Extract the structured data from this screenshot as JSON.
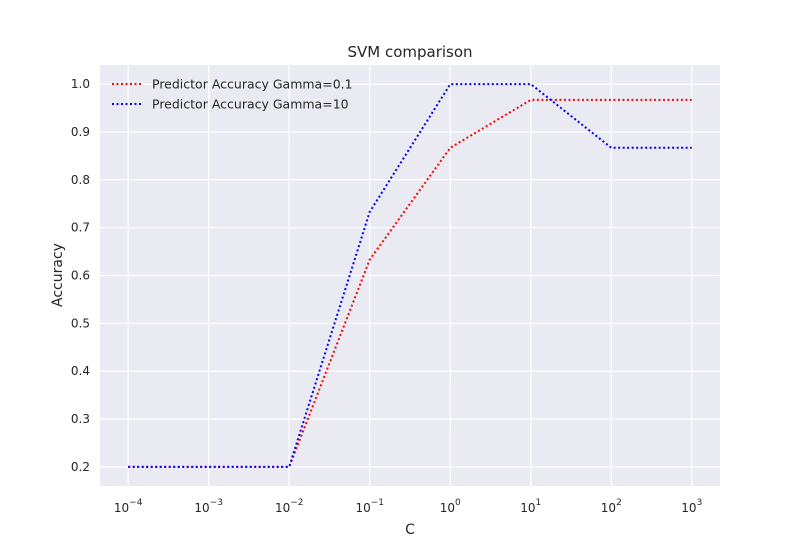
{
  "chart_data": {
    "type": "line",
    "title": "SVM comparison",
    "xlabel": "C",
    "ylabel": "Accuracy",
    "xscale": "log",
    "x": [
      0.0001,
      0.001,
      0.01,
      0.1,
      1,
      10,
      100,
      1000
    ],
    "x_tick_labels": [
      {
        "base": "10",
        "exp": "−4"
      },
      {
        "base": "10",
        "exp": "−3"
      },
      {
        "base": "10",
        "exp": "−2"
      },
      {
        "base": "10",
        "exp": "−1"
      },
      {
        "base": "10",
        "exp": "0"
      },
      {
        "base": "10",
        "exp": "1"
      },
      {
        "base": "10",
        "exp": "2"
      },
      {
        "base": "10",
        "exp": "3"
      }
    ],
    "y_ticks": [
      "0.2",
      "0.3",
      "0.4",
      "0.5",
      "0.6",
      "0.7",
      "0.8",
      "0.9",
      "1.0"
    ],
    "ylim": [
      0.16,
      1.04
    ],
    "grid": true,
    "legend_position": "top-left",
    "series": [
      {
        "name": "Predictor Accuracy Gamma=0.1",
        "color": "#ff0000",
        "style": "dotted",
        "values": [
          0.2,
          0.2,
          0.2,
          0.633,
          0.867,
          0.967,
          0.967,
          0.967
        ]
      },
      {
        "name": "Predictor Accuracy Gamma=10",
        "color": "#0000ff",
        "style": "dotted",
        "values": [
          0.2,
          0.2,
          0.2,
          0.733,
          1.0,
          1.0,
          0.867,
          0.867
        ]
      }
    ]
  },
  "colors": {
    "plot_background": "#eaeaf2",
    "grid": "#ffffff",
    "text": "#262626"
  }
}
